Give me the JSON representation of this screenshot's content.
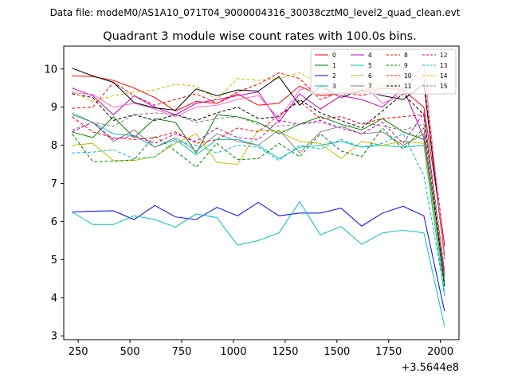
{
  "chart_data": {
    "type": "line",
    "suptitle": "Data file: modeM0/AS1A10_071T04_9000004316_30038cztM0_level2_quad_clean.evt",
    "title": "Quadrant 3 module wise count rates with 100.0s bins.",
    "xlabel": "",
    "ylabel": "",
    "x_offset_label": "+3.5644e8",
    "xlim": [
      180,
      2090
    ],
    "ylim": [
      2.9,
      10.6
    ],
    "x_ticks": [
      250,
      500,
      750,
      1000,
      1250,
      1500,
      1750,
      2000
    ],
    "y_ticks": [
      3,
      4,
      5,
      6,
      7,
      8,
      9,
      10
    ],
    "grid": false,
    "legend_position": "top-right",
    "x": [
      220,
      320,
      420,
      520,
      620,
      720,
      820,
      920,
      1020,
      1120,
      1220,
      1320,
      1420,
      1520,
      1620,
      1720,
      1820,
      1920,
      2020
    ],
    "series": [
      {
        "name": "0",
        "color": "#ff0000",
        "dash": "solid",
        "values": [
          9.82,
          9.8,
          9.7,
          9.5,
          9.25,
          8.9,
          9.15,
          9.1,
          9.35,
          9.05,
          9.1,
          9.55,
          9.3,
          9.35,
          9.4,
          9.5,
          9.45,
          9.0,
          5.4
        ]
      },
      {
        "name": "1",
        "color": "#008000",
        "dash": "solid",
        "values": [
          8.35,
          8.2,
          8.75,
          8.2,
          8.7,
          8.6,
          7.8,
          8.8,
          8.75,
          8.6,
          8.3,
          8.55,
          8.75,
          8.55,
          8.4,
          8.7,
          8.35,
          8.15,
          4.3
        ]
      },
      {
        "name": "2",
        "color": "#0000ff",
        "dash": "solid",
        "values": [
          6.25,
          6.27,
          6.28,
          6.05,
          6.42,
          6.12,
          6.05,
          6.37,
          6.15,
          6.5,
          6.15,
          6.22,
          6.22,
          6.35,
          5.88,
          6.22,
          6.4,
          6.15,
          3.65
        ]
      },
      {
        "name": "3",
        "color": "#00bfbf",
        "dash": "solid",
        "values": [
          6.25,
          5.92,
          5.92,
          6.15,
          6.05,
          5.85,
          6.2,
          6.1,
          5.38,
          5.5,
          5.7,
          6.52,
          5.65,
          5.87,
          5.4,
          5.7,
          5.77,
          5.7,
          3.25
        ]
      },
      {
        "name": "4",
        "color": "#bf00bf",
        "dash": "solid",
        "values": [
          9.5,
          9.3,
          8.8,
          9.3,
          9.0,
          8.8,
          9.1,
          9.2,
          9.3,
          9.4,
          8.6,
          9.35,
          8.95,
          9.3,
          9.2,
          9.0,
          9.5,
          8.2,
          4.6
        ]
      },
      {
        "name": "5",
        "color": "#00bfbf",
        "dash": "solid",
        "values": [
          8.85,
          8.6,
          8.3,
          8.25,
          7.95,
          8.15,
          7.75,
          8.15,
          8.15,
          8.0,
          7.65,
          7.95,
          8.0,
          8.1,
          7.95,
          8.0,
          7.95,
          8.0,
          4.05
        ]
      },
      {
        "name": "6",
        "color": "#bfbf00",
        "dash": "solid",
        "values": [
          8.0,
          8.05,
          7.6,
          7.6,
          7.7,
          8.05,
          8.3,
          7.55,
          7.5,
          8.4,
          8.35,
          8.1,
          8.05,
          7.65,
          8.1,
          8.0,
          8.1,
          8.05,
          4.4
        ]
      },
      {
        "name": "7",
        "color": "#808080",
        "dash": "solid",
        "values": [
          8.8,
          8.6,
          8.1,
          8.4,
          7.95,
          8.2,
          7.85,
          8.3,
          8.1,
          8.0,
          8.4,
          7.8,
          8.35,
          8.5,
          8.3,
          8.35,
          8.0,
          8.3,
          4.5
        ]
      },
      {
        "name": "8",
        "color": "#ff0000",
        "dash": "dashed",
        "values": [
          8.97,
          9.0,
          9.65,
          9.3,
          9.05,
          9.2,
          9.35,
          9.1,
          9.4,
          9.6,
          9.9,
          9.75,
          9.2,
          9.4,
          9.3,
          9.45,
          9.85,
          9.75,
          5.35
        ]
      },
      {
        "name": "9",
        "color": "#008000",
        "dash": "dashed",
        "values": [
          8.3,
          7.57,
          7.58,
          7.62,
          8.25,
          7.85,
          7.42,
          8.05,
          7.62,
          7.65,
          8.05,
          7.7,
          8.3,
          7.85,
          7.7,
          8.45,
          7.9,
          8.45,
          4.4
        ]
      },
      {
        "name": "10",
        "color": "#ff0000",
        "dash": "dashed",
        "values": [
          8.75,
          8.35,
          8.2,
          8.15,
          8.2,
          8.35,
          8.05,
          8.15,
          8.45,
          8.35,
          8.8,
          9.15,
          8.7,
          8.75,
          8.55,
          8.7,
          8.75,
          8.8,
          4.6
        ]
      },
      {
        "name": "11",
        "color": "#000000",
        "dash": "dashed",
        "values": [
          9.35,
          9.25,
          8.65,
          8.8,
          8.65,
          8.8,
          8.65,
          8.85,
          9.0,
          8.7,
          8.75,
          9.2,
          8.85,
          8.65,
          8.45,
          8.9,
          9.35,
          8.8,
          4.3
        ]
      },
      {
        "name": "12",
        "color": "#bf00bf",
        "dash": "dashed",
        "values": [
          8.35,
          8.6,
          8.15,
          8.25,
          8.05,
          8.3,
          8.1,
          8.45,
          8.2,
          8.15,
          8.65,
          8.55,
          8.65,
          8.45,
          8.3,
          8.6,
          8.05,
          8.85,
          4.7
        ]
      },
      {
        "name": "13",
        "color": "#00bfbf",
        "dash": "dashed",
        "values": [
          7.8,
          7.82,
          7.88,
          7.65,
          7.7,
          8.1,
          8.0,
          7.8,
          8.0,
          7.95,
          7.6,
          8.0,
          7.9,
          8.15,
          7.95,
          8.05,
          8.3,
          7.2,
          4.15
        ]
      },
      {
        "name": "14",
        "color": "#bfbf00",
        "dash": "dashed",
        "values": [
          9.4,
          9.15,
          9.3,
          9.4,
          9.45,
          9.6,
          9.55,
          9.2,
          9.75,
          9.7,
          9.75,
          9.9,
          9.6,
          9.5,
          9.45,
          9.6,
          9.55,
          9.6,
          5.0
        ]
      },
      {
        "name": "15",
        "color": "#808080",
        "dash": "dashed",
        "values": [
          8.4,
          8.6,
          8.5,
          8.8,
          8.85,
          8.8,
          8.6,
          8.7,
          8.75,
          8.55,
          8.5,
          8.55,
          8.6,
          8.45,
          8.6,
          8.5,
          8.4,
          8.55,
          4.75
        ]
      }
    ],
    "extra_series": [
      {
        "color": "#000000",
        "dash": "solid",
        "values": [
          10.02,
          9.82,
          9.65,
          9.12,
          8.98,
          8.92,
          9.48,
          9.3,
          9.45,
          9.42,
          9.8,
          9.05,
          9.55,
          9.25,
          9.45,
          9.3,
          9.2,
          9.6,
          5.1
        ]
      },
      {
        "color": "#ff66cc",
        "dash": "solid",
        "values": [
          9.38,
          9.33,
          9.0,
          9.1,
          8.95,
          8.75,
          9.0,
          9.05,
          9.2,
          9.3,
          8.7,
          9.45,
          9.6,
          9.25,
          9.65,
          9.1,
          9.35,
          10.15,
          5.0
        ]
      }
    ]
  }
}
